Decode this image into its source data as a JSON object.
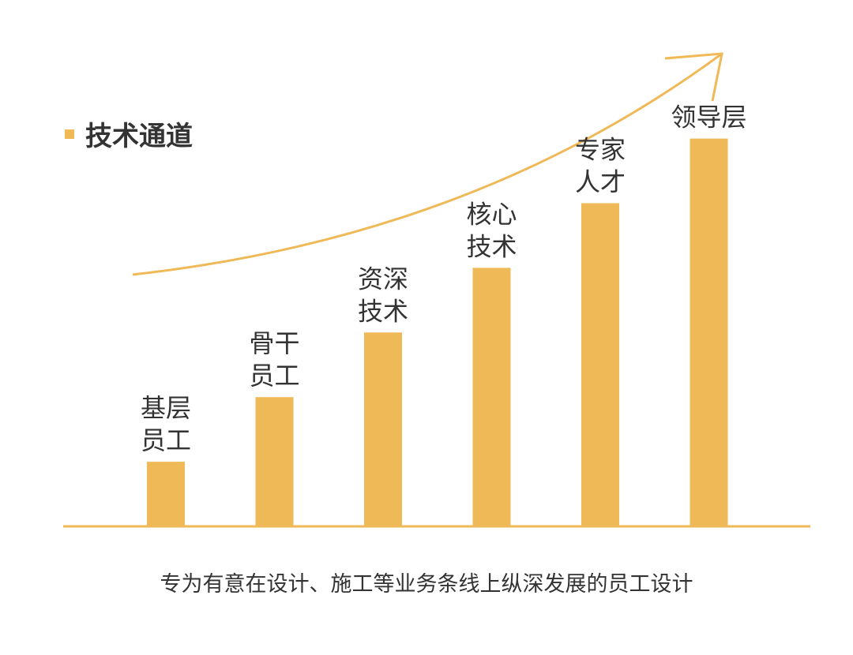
{
  "title": "技术通道",
  "caption": "专为有意在设计、施工等业务条线上纵深发展的员工设计",
  "colors": {
    "bar": "#efb957",
    "axis": "#efb957",
    "arrow": "#efb957",
    "text": "#333333"
  },
  "chart_data": {
    "type": "bar",
    "categories": [
      [
        "基层",
        "员工"
      ],
      [
        "骨干",
        "员工"
      ],
      [
        "资深",
        "技术"
      ],
      [
        "核心",
        "技术"
      ],
      [
        "专家",
        "人才"
      ],
      [
        "领导层"
      ]
    ],
    "values": [
      1,
      2,
      3,
      4,
      5,
      6
    ],
    "ylim": [
      0,
      7.9
    ],
    "grid": false,
    "legend": "none"
  }
}
